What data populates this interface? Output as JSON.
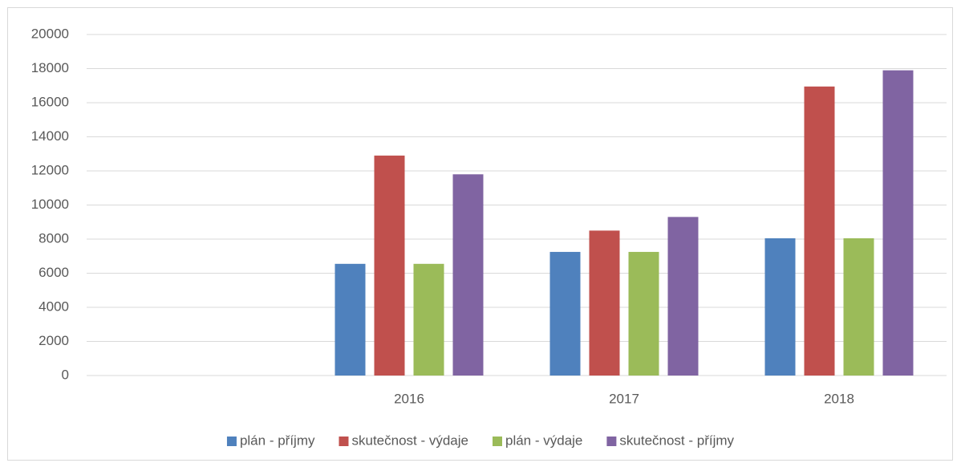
{
  "chart_data": {
    "type": "bar",
    "categories": [
      null,
      "2016",
      "2017",
      "2018"
    ],
    "series": [
      {
        "name": "plán - příjmy",
        "color": "#4f81bd",
        "values": [
          null,
          6550,
          7250,
          8050
        ]
      },
      {
        "name": "skutečnost - výdaje",
        "color": "#c0504d",
        "values": [
          null,
          12900,
          8500,
          16950
        ]
      },
      {
        "name": "plán - výdaje",
        "color": "#9bbb59",
        "values": [
          null,
          6550,
          7250,
          8050
        ]
      },
      {
        "name": "skutečnost - příjmy",
        "color": "#8064a2",
        "values": [
          null,
          11800,
          9300,
          17900
        ]
      }
    ],
    "ylim": [
      0,
      20000
    ],
    "yticks": [
      0,
      2000,
      4000,
      6000,
      8000,
      10000,
      12000,
      14000,
      16000,
      18000,
      20000
    ],
    "grid": true,
    "legend": "bottom"
  }
}
